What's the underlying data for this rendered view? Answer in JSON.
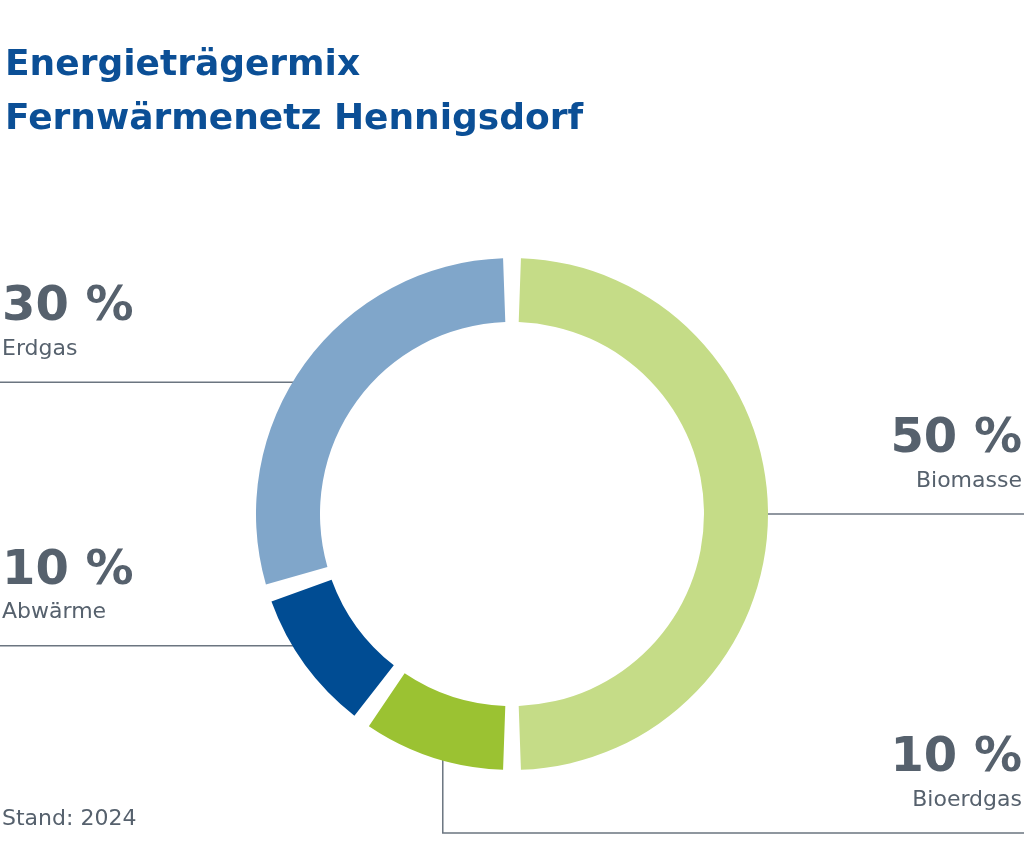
{
  "chart_data": {
    "type": "donut",
    "title": "Energieträgermix Fernwärmenetz Hennigsdorf",
    "categories": [
      "Biomasse",
      "Bioerdgas",
      "Abwärme",
      "Erdgas"
    ],
    "values": [
      50,
      10,
      10,
      30
    ],
    "colors": [
      "#c5dc87",
      "#9bc232",
      "#004c93",
      "#80a6ca"
    ],
    "value_labels": [
      "50 %",
      "10 %",
      "10 %",
      "30 %"
    ],
    "annotations": [
      "Stand: 2024"
    ]
  }
}
